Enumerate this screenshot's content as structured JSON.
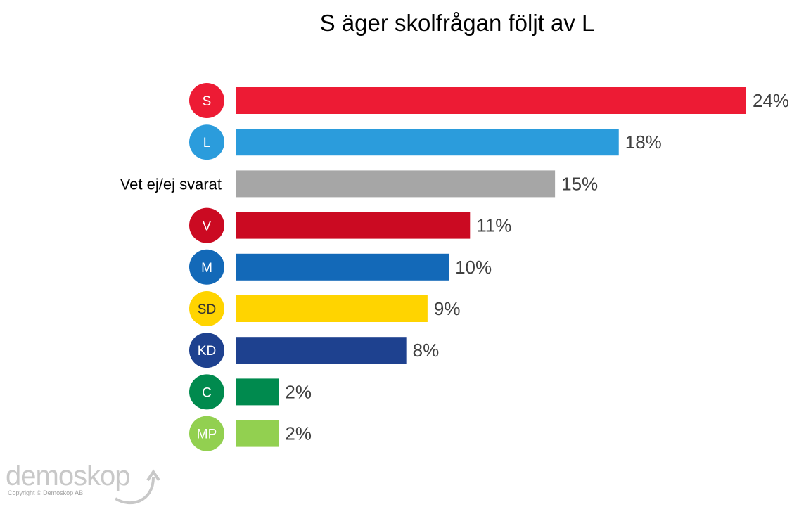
{
  "chart_data": {
    "type": "bar",
    "orientation": "horizontal",
    "title": "S äger skolfrågan följt av L",
    "categories": [
      "S",
      "L",
      "Vet ej/ej svarat",
      "V",
      "M",
      "SD",
      "KD",
      "C",
      "MP"
    ],
    "values": [
      24,
      18,
      15,
      11,
      10,
      9,
      8,
      2,
      2
    ],
    "value_labels": [
      "24%",
      "18%",
      "15%",
      "11%",
      "10%",
      "9%",
      "8%",
      "2%",
      "2%"
    ],
    "colors": [
      "#ed1b34",
      "#2b9cdc",
      "#a6a6a6",
      "#cb0a22",
      "#1369b8",
      "#ffd400",
      "#1e418f",
      "#008a4e",
      "#92d050"
    ],
    "badge_text_colors": [
      "#ffffff",
      "#ffffff",
      "#000000",
      "#ffffff",
      "#ffffff",
      "#333333",
      "#ffffff",
      "#ffffff",
      "#ffffff"
    ],
    "badge_rows": [
      true,
      true,
      false,
      true,
      true,
      true,
      true,
      true,
      true
    ],
    "xlabel": "",
    "ylabel": "",
    "xlim": [
      0,
      24
    ],
    "grid": false,
    "legend": "none"
  },
  "branding": {
    "logo_text": "demoskop",
    "copyright": "Copyright © Demoskop AB"
  }
}
